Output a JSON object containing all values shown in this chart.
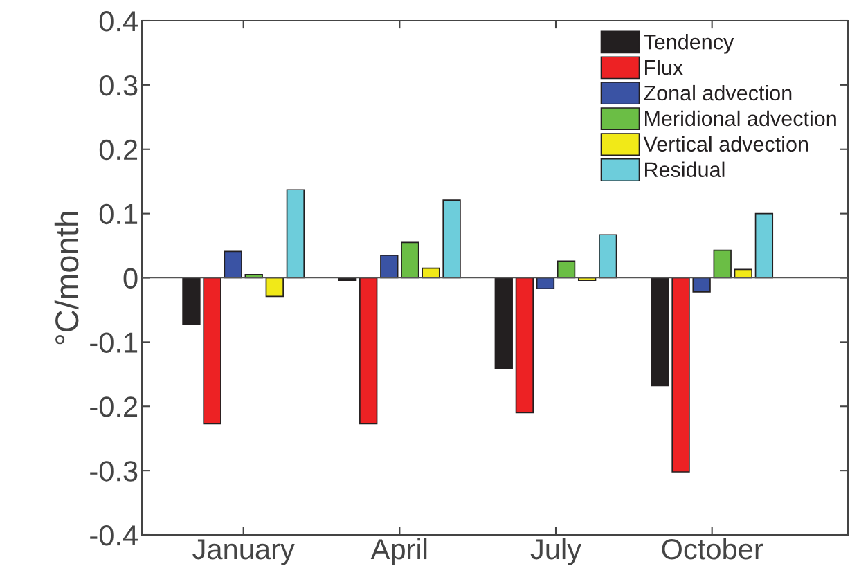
{
  "chart_data": {
    "type": "bar",
    "ylabel": "°C/month",
    "categories": [
      "January",
      "April",
      "July",
      "October"
    ],
    "series": [
      {
        "name": "Tendency",
        "color": "#231f20",
        "values": [
          -0.072,
          -0.004,
          -0.141,
          -0.168
        ]
      },
      {
        "name": "Flux",
        "color": "#ed2224",
        "values": [
          -0.227,
          -0.227,
          -0.21,
          -0.302
        ]
      },
      {
        "name": "Zonal advection",
        "color": "#3a53a4",
        "values": [
          0.041,
          0.035,
          -0.017,
          -0.022
        ]
      },
      {
        "name": "Meridional advection",
        "color": "#6bbe45",
        "values": [
          0.005,
          0.055,
          0.026,
          0.043
        ]
      },
      {
        "name": "Vertical advection",
        "color": "#f1e918",
        "values": [
          -0.029,
          0.015,
          -0.004,
          0.013
        ]
      },
      {
        "name": "Residual",
        "color": "#6dcddb",
        "values": [
          0.137,
          0.121,
          0.067,
          0.1
        ]
      }
    ],
    "ylim": [
      -0.4,
      0.4
    ],
    "yticks": [
      -0.4,
      -0.3,
      -0.2,
      -0.1,
      0,
      0.1,
      0.2,
      0.3,
      0.4
    ],
    "ref_lines": [
      {
        "axis": "y",
        "value": 0,
        "color": "#555555"
      }
    ],
    "grid": false,
    "legend": "top right"
  }
}
